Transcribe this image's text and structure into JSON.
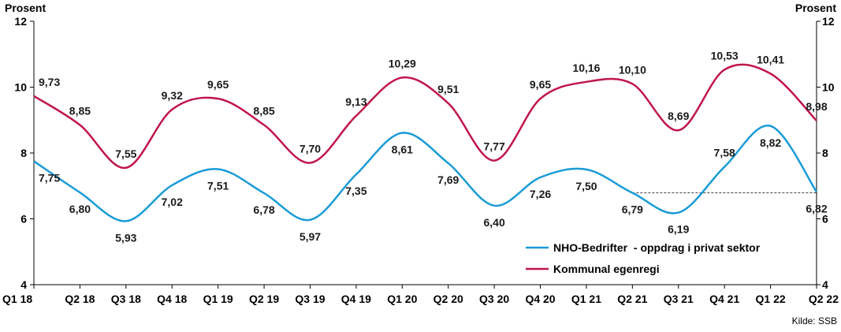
{
  "chart_data": {
    "type": "line",
    "categories": [
      "Q1 18",
      "Q2 18",
      "Q3 18",
      "Q4 18",
      "Q1 19",
      "Q2 19",
      "Q3 19",
      "Q4 19",
      "Q1 20",
      "Q2 20",
      "Q3 20",
      "Q4 20",
      "Q1 21",
      "Q2 21",
      "Q3 21",
      "Q4 21",
      "Q1 22",
      "Q2 22"
    ],
    "series": [
      {
        "name": "NHO-Bedrifter  - oppdrag i privat sektor",
        "color": "#1a9bd7",
        "values": [
          7.75,
          6.8,
          5.93,
          7.02,
          7.51,
          6.78,
          5.97,
          7.35,
          8.61,
          7.69,
          6.4,
          7.26,
          7.5,
          6.79,
          6.19,
          7.58,
          8.82,
          6.82
        ],
        "labels": [
          "7,75",
          "6,80",
          "5,93",
          "7,02",
          "7,51",
          "6,78",
          "5,97",
          "7,35",
          "8,61",
          "7,69",
          "6,40",
          "7,26",
          "7,50",
          "6,79",
          "6,19",
          "7,58",
          "8,82",
          "6,82"
        ]
      },
      {
        "name": "Kommunal egenregi",
        "color": "#c0164a",
        "values": [
          9.73,
          8.85,
          7.55,
          9.32,
          9.65,
          8.85,
          7.7,
          9.13,
          10.29,
          9.51,
          7.77,
          9.65,
          10.16,
          10.1,
          8.69,
          10.53,
          10.41,
          8.98
        ],
        "labels": [
          "9,73",
          "8,85",
          "7,55",
          "9,32",
          "9,65",
          "8,85",
          "7,70",
          "9,13",
          "10,29",
          "9,51",
          "7,77",
          "9,65",
          "10,16",
          "10,10",
          "8,69",
          "10,53",
          "10,41",
          "8,98"
        ]
      }
    ],
    "ylim": [
      4,
      12
    ],
    "yticks": [
      "4",
      "6",
      "8",
      "10",
      "12"
    ],
    "ylabel_left": "Prosent",
    "ylabel_right": "Prosent",
    "grid": false,
    "legend_position": "bottom-right",
    "reference_line": {
      "from_category": "Q2 21",
      "to_category": "Q2 22",
      "value": 6.79,
      "style": "dashed"
    },
    "source": "Kilde: SSB"
  }
}
